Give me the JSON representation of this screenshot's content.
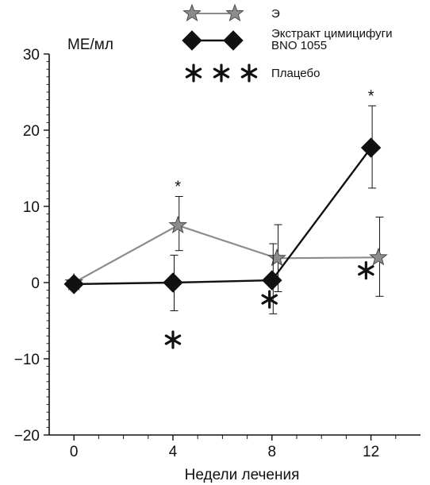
{
  "chart_data": {
    "type": "line",
    "ylabel": "МЕ/мл",
    "xlabel": "Недели лечения",
    "xlim": [
      -1,
      14
    ],
    "ylim": [
      -20,
      30
    ],
    "xticks": [
      0,
      4,
      8,
      12
    ],
    "yticks": [
      -20,
      -10,
      0,
      10,
      20,
      30
    ],
    "grid": false,
    "legend_position": "top",
    "legend": [
      {
        "label": "Э",
        "marker": "star",
        "color": "#8c8c8c"
      },
      {
        "label": "Экстракт цимицифуги BNO 1055",
        "marker": "diamond",
        "color": "#111111"
      },
      {
        "label": "Плацебо",
        "marker": "asterisk",
        "color": "#111111"
      }
    ],
    "series": [
      {
        "name": "Э",
        "marker": "star",
        "color": "#8c8c8c",
        "points": [
          {
            "x": 0,
            "y": 0,
            "err_low": 0,
            "err_high": 0
          },
          {
            "x": 4.2,
            "y": 7.5,
            "err_low": 3.3,
            "err_high": 3.8,
            "sig": "*"
          },
          {
            "x": 8.2,
            "y": 3.2,
            "err_low": 4.4,
            "err_high": 4.4
          },
          {
            "x": 12.3,
            "y": 3.3,
            "err_low": 5.1,
            "err_high": 5.3
          }
        ]
      },
      {
        "name": "Экстракт цимицифуги BNO 1055",
        "marker": "diamond",
        "color": "#111111",
        "points": [
          {
            "x": 0,
            "y": -0.2,
            "err_low": 0,
            "err_high": 0
          },
          {
            "x": 4,
            "y": 0,
            "err_low": 3.7,
            "err_high": 3.6
          },
          {
            "x": 8,
            "y": 0.3,
            "err_low": 4.4,
            "err_high": 4.8
          },
          {
            "x": 12,
            "y": 17.7,
            "err_low": 5.3,
            "err_high": 5.5,
            "sig": "*"
          }
        ]
      },
      {
        "name": "Плацебо",
        "marker": "asterisk",
        "color": "#111111",
        "points": [
          {
            "x": 4,
            "y": -7.5
          },
          {
            "x": 7.9,
            "y": -2.2
          },
          {
            "x": 11.8,
            "y": 1.6
          }
        ]
      }
    ]
  }
}
